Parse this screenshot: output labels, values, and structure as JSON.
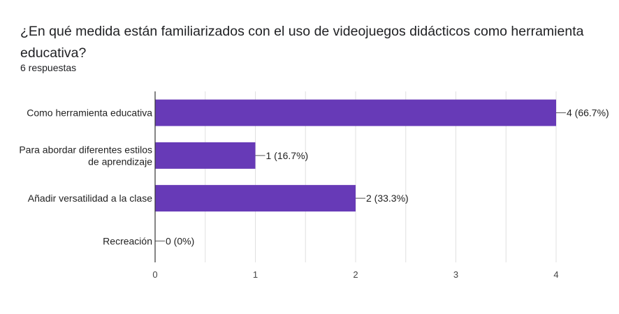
{
  "header": {
    "question": "¿En qué medida están familiarizados con el uso de videojuegos didácticos como herramienta educativa?",
    "responses": "6 respuestas"
  },
  "colors": {
    "bar": "#673ab7",
    "grid": "#e0e0e0",
    "axis": "#333333"
  },
  "chart_data": {
    "type": "bar",
    "orientation": "horizontal",
    "categories": [
      [
        "Como herramienta educativa"
      ],
      [
        "Para abordar diferentes estilos",
        "de aprendizaje"
      ],
      [
        "Añadir versatilidad a la clase"
      ],
      [
        "Recreación"
      ]
    ],
    "values": [
      4,
      1,
      2,
      0
    ],
    "data_labels": [
      "4 (66.7%)",
      "1 (16.7%)",
      "2 (33.3%)",
      "0 (0%)"
    ],
    "xlim": [
      0,
      4
    ],
    "xticks": [
      "0",
      "1",
      "2",
      "3",
      "4"
    ],
    "grid": true
  }
}
